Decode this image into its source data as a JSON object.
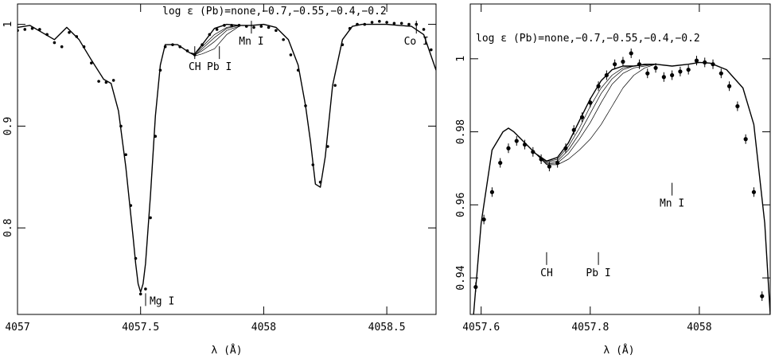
{
  "chart_data": [
    {
      "type": "line",
      "title": "",
      "xlabel": "λ (Å)",
      "ylabel": "",
      "xlim": [
        4057.0,
        4058.7
      ],
      "ylim": [
        0.715,
        1.02
      ],
      "grid": false,
      "x_ticks": [
        4057,
        4057.5,
        4058,
        4058.5
      ],
      "x_tick_labels": [
        "4057",
        "4057.5",
        "4058",
        "4058.5"
      ],
      "y_ticks": [
        0.8,
        0.9,
        1.0
      ],
      "y_tick_labels": [
        "0.8",
        "0.9",
        "1"
      ],
      "annotation": "log ε (Pb)=none,−0.7,−0.55,−0.4,−0.2",
      "line_labels": [
        {
          "text": "CH",
          "x": 4057.72,
          "y": 0.955
        },
        {
          "text": "Pb I",
          "x": 4057.82,
          "y": 0.955
        },
        {
          "text": "Mn I",
          "x": 4057.95,
          "y": 0.98
        },
        {
          "text": "Co I",
          "x": 4058.62,
          "y": 0.98
        },
        {
          "text": "Mg I",
          "x": 4057.53,
          "y": 0.728
        }
      ],
      "models": [
        {
          "label": "none",
          "x": [
            4057.0,
            4057.05,
            4057.1,
            4057.15,
            4057.2,
            4057.25,
            4057.3,
            4057.35,
            4057.38,
            4057.41,
            4057.44,
            4057.47,
            4057.48,
            4057.49,
            4057.5,
            4057.51,
            4057.52,
            4057.54,
            4057.56,
            4057.58,
            4057.6,
            4057.65,
            4057.7,
            4057.72,
            4057.75,
            4057.8,
            4057.85,
            4057.9,
            4057.95,
            4058.0,
            4058.05,
            4058.1,
            4058.14,
            4058.17,
            4058.19,
            4058.21,
            4058.23,
            4058.25,
            4058.28,
            4058.32,
            4058.36,
            4058.4,
            4058.45,
            4058.5,
            4058.55,
            4058.6,
            4058.65,
            4058.7
          ],
          "y": [
            0.997,
            0.999,
            0.992,
            0.985,
            0.997,
            0.985,
            0.965,
            0.946,
            0.942,
            0.915,
            0.86,
            0.79,
            0.765,
            0.745,
            0.737,
            0.745,
            0.765,
            0.832,
            0.91,
            0.96,
            0.98,
            0.98,
            0.972,
            0.971,
            0.98,
            0.996,
            1.0,
            0.999,
            0.999,
            1.0,
            0.997,
            0.985,
            0.96,
            0.92,
            0.885,
            0.843,
            0.84,
            0.87,
            0.94,
            0.985,
            0.998,
            1.0,
            1.0,
            1.0,
            0.999,
            0.998,
            0.99,
            0.955
          ]
        },
        {
          "label": "-0.7",
          "x": [
            4057.7,
            4057.72,
            4057.75,
            4057.8,
            4057.85,
            4057.9
          ],
          "y": [
            0.972,
            0.971,
            0.978,
            0.99,
            0.997,
            0.999
          ]
        },
        {
          "label": "-0.55",
          "x": [
            4057.7,
            4057.72,
            4057.75,
            4057.8,
            4057.85,
            4057.9
          ],
          "y": [
            0.972,
            0.97,
            0.976,
            0.987,
            0.996,
            0.999
          ]
        },
        {
          "label": "-0.4",
          "x": [
            4057.7,
            4057.72,
            4057.75,
            4057.8,
            4057.85,
            4057.9
          ],
          "y": [
            0.972,
            0.97,
            0.974,
            0.983,
            0.994,
            0.998
          ]
        },
        {
          "label": "-0.2",
          "x": [
            4057.7,
            4057.72,
            4057.75,
            4057.8,
            4057.85,
            4057.9
          ],
          "y": [
            0.972,
            0.969,
            0.971,
            0.976,
            0.99,
            0.998
          ]
        }
      ],
      "observed": {
        "x": [
          4057.0,
          4057.03,
          4057.06,
          4057.09,
          4057.12,
          4057.15,
          4057.18,
          4057.21,
          4057.24,
          4057.27,
          4057.3,
          4057.33,
          4057.36,
          4057.39,
          4057.42,
          4057.44,
          4057.46,
          4057.48,
          4057.5,
          4057.52,
          4057.54,
          4057.56,
          4057.58,
          4057.6,
          4057.63,
          4057.66,
          4057.69,
          4057.72,
          4057.75,
          4057.78,
          4057.81,
          4057.84,
          4057.87,
          4057.9,
          4057.93,
          4057.96,
          4057.99,
          4058.02,
          4058.05,
          4058.08,
          4058.11,
          4058.14,
          4058.17,
          4058.2,
          4058.23,
          4058.26,
          4058.29,
          4058.32,
          4058.35,
          4058.38,
          4058.41,
          4058.44,
          4058.47,
          4058.5,
          4058.53,
          4058.56,
          4058.59,
          4058.62,
          4058.65,
          4058.68
        ],
        "y": [
          0.994,
          0.995,
          0.996,
          0.995,
          0.99,
          0.982,
          0.978,
          0.992,
          0.988,
          0.978,
          0.962,
          0.944,
          0.943,
          0.945,
          0.9,
          0.872,
          0.822,
          0.77,
          0.735,
          0.74,
          0.81,
          0.89,
          0.955,
          0.978,
          0.98,
          0.978,
          0.974,
          0.97,
          0.98,
          0.99,
          0.995,
          0.999,
          0.999,
          0.999,
          0.998,
          0.997,
          0.998,
          0.997,
          0.994,
          0.985,
          0.97,
          0.955,
          0.92,
          0.862,
          0.845,
          0.88,
          0.94,
          0.98,
          0.996,
          1.0,
          1.0,
          1.002,
          1.003,
          1.002,
          1.001,
          1.001,
          1.0,
          1.0,
          0.995,
          0.975
        ]
      }
    },
    {
      "type": "line",
      "title": "",
      "xlabel": "λ (Å)",
      "ylabel": "",
      "xlim": [
        4057.58,
        4058.13
      ],
      "ylim": [
        0.93,
        1.015
      ],
      "grid": false,
      "x_ticks": [
        4057.6,
        4057.8,
        4058.0
      ],
      "x_tick_labels": [
        "4057.6",
        "4057.8",
        "4058"
      ],
      "y_ticks": [
        0.94,
        0.96,
        0.98,
        1.0
      ],
      "y_tick_labels": [
        "0.94",
        "0.96",
        "0.98",
        "1"
      ],
      "annotation": "log ε (Pb)=none,−0.7,−0.55,−0.4,−0.2",
      "line_labels": [
        {
          "text": "CH",
          "x": 4057.72,
          "y": 0.9405
        },
        {
          "text": "Pb I",
          "x": 4057.815,
          "y": 0.9405
        },
        {
          "text": "Mn I",
          "x": 4057.95,
          "y": 0.9595
        }
      ],
      "models": [
        {
          "label": "none",
          "x": [
            4057.585,
            4057.6,
            4057.62,
            4057.64,
            4057.65,
            4057.66,
            4057.68,
            4057.7,
            4057.72,
            4057.74,
            4057.76,
            4057.78,
            4057.8,
            4057.82,
            4057.84,
            4057.86,
            4057.88,
            4057.9,
            4057.92,
            4057.95,
            4057.98,
            4058.0,
            4058.02,
            4058.05,
            4058.08,
            4058.1,
            4058.12,
            4058.13
          ],
          "y": [
            0.928,
            0.955,
            0.975,
            0.98,
            0.981,
            0.98,
            0.977,
            0.974,
            0.972,
            0.973,
            0.977,
            0.983,
            0.989,
            0.994,
            0.997,
            0.998,
            0.998,
            0.9985,
            0.9985,
            0.998,
            0.9985,
            0.999,
            0.9988,
            0.997,
            0.992,
            0.982,
            0.955,
            0.93
          ]
        },
        {
          "label": "-0.7",
          "x": [
            4057.7,
            4057.72,
            4057.74,
            4057.76,
            4057.78,
            4057.8,
            4057.82,
            4057.84,
            4057.86,
            4057.88,
            4057.9,
            4057.92
          ],
          "y": [
            0.974,
            0.9718,
            0.9725,
            0.976,
            0.981,
            0.987,
            0.992,
            0.9955,
            0.9975,
            0.998,
            0.9985,
            0.9985
          ]
        },
        {
          "label": "-0.55",
          "x": [
            4057.7,
            4057.72,
            4057.74,
            4057.76,
            4057.78,
            4057.8,
            4057.82,
            4057.84,
            4057.86,
            4057.88,
            4057.9,
            4057.92
          ],
          "y": [
            0.974,
            0.9715,
            0.972,
            0.975,
            0.9795,
            0.985,
            0.9905,
            0.9945,
            0.997,
            0.998,
            0.9983,
            0.9985
          ]
        },
        {
          "label": "-0.4",
          "x": [
            4057.7,
            4057.72,
            4057.74,
            4057.76,
            4057.78,
            4057.8,
            4057.82,
            4057.84,
            4057.86,
            4057.88,
            4057.9,
            4057.92
          ],
          "y": [
            0.974,
            0.9712,
            0.9715,
            0.974,
            0.978,
            0.9825,
            0.988,
            0.993,
            0.996,
            0.9975,
            0.998,
            0.9985
          ]
        },
        {
          "label": "-0.2",
          "x": [
            4057.7,
            4057.72,
            4057.74,
            4057.76,
            4057.78,
            4057.8,
            4057.82,
            4057.84,
            4057.86,
            4057.88,
            4057.9,
            4057.92
          ],
          "y": [
            0.974,
            0.971,
            0.971,
            0.9725,
            0.975,
            0.978,
            0.982,
            0.987,
            0.992,
            0.9955,
            0.9975,
            0.9985
          ]
        }
      ],
      "observed": {
        "x": [
          4057.59,
          4057.605,
          4057.62,
          4057.635,
          4057.65,
          4057.665,
          4057.68,
          4057.695,
          4057.71,
          4057.725,
          4057.74,
          4057.755,
          4057.77,
          4057.785,
          4057.8,
          4057.815,
          4057.83,
          4057.845,
          4057.86,
          4057.875,
          4057.89,
          4057.905,
          4057.92,
          4057.935,
          4057.95,
          4057.965,
          4057.98,
          4057.995,
          4058.01,
          4058.025,
          4058.04,
          4058.055,
          4058.07,
          4058.085,
          4058.1,
          4058.115,
          4058.128
        ],
        "y": [
          0.9375,
          0.956,
          0.9635,
          0.9715,
          0.9755,
          0.9775,
          0.9765,
          0.9745,
          0.9725,
          0.9705,
          0.9715,
          0.9755,
          0.9805,
          0.984,
          0.988,
          0.9925,
          0.9955,
          0.9985,
          0.9992,
          1.0015,
          0.9985,
          0.996,
          0.9975,
          0.995,
          0.9955,
          0.9965,
          0.997,
          0.9995,
          0.999,
          0.9985,
          0.996,
          0.9925,
          0.987,
          0.978,
          0.9635,
          0.935,
          0.928
        ]
      }
    }
  ]
}
